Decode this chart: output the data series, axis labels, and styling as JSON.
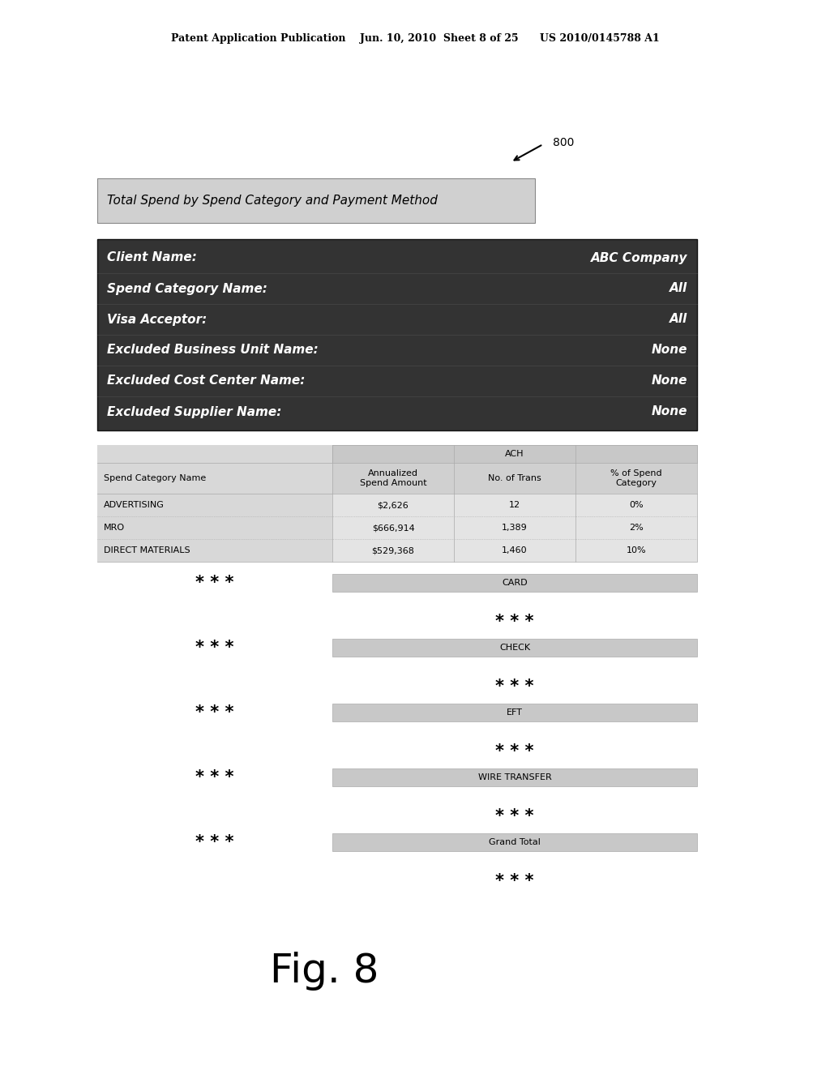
{
  "header_text": "Patent Application Publication    Jun. 10, 2010  Sheet 8 of 25      US 2010/0145788 A1",
  "ref_number": "800",
  "title_box_text": "Total Spend by Spend Category and Payment Method",
  "title_box_bg": "#d0d0d0",
  "info_box_bg": "#333333",
  "info_box_text_color": "#ffffff",
  "info_rows": [
    [
      "Client Name:",
      "ABC Company"
    ],
    [
      "Spend Category Name:",
      "All"
    ],
    [
      "Visa Acceptor:",
      "All"
    ],
    [
      "Excluded Business Unit Name:",
      "None"
    ],
    [
      "Excluded Cost Center Name:",
      "None"
    ],
    [
      "Excluded Supplier Name:",
      "None"
    ]
  ],
  "ach_label": "ACH",
  "col_headers": [
    "Spend Category Name",
    "Annualized\nSpend Amount",
    "No. of Trans",
    "% of Spend\nCategory"
  ],
  "table_rows": [
    [
      "ADVERTISING",
      "$2,626",
      "12",
      "0%"
    ],
    [
      "MRO",
      "$666,914",
      "1,389",
      "2%"
    ],
    [
      "DIRECT MATERIALS",
      "$529,368",
      "1,460",
      "10%"
    ]
  ],
  "section_labels": [
    "CARD",
    "CHECK",
    "EFT",
    "WIRE TRANSFER",
    "Grand Total"
  ],
  "fig_label": "Fig. 8"
}
